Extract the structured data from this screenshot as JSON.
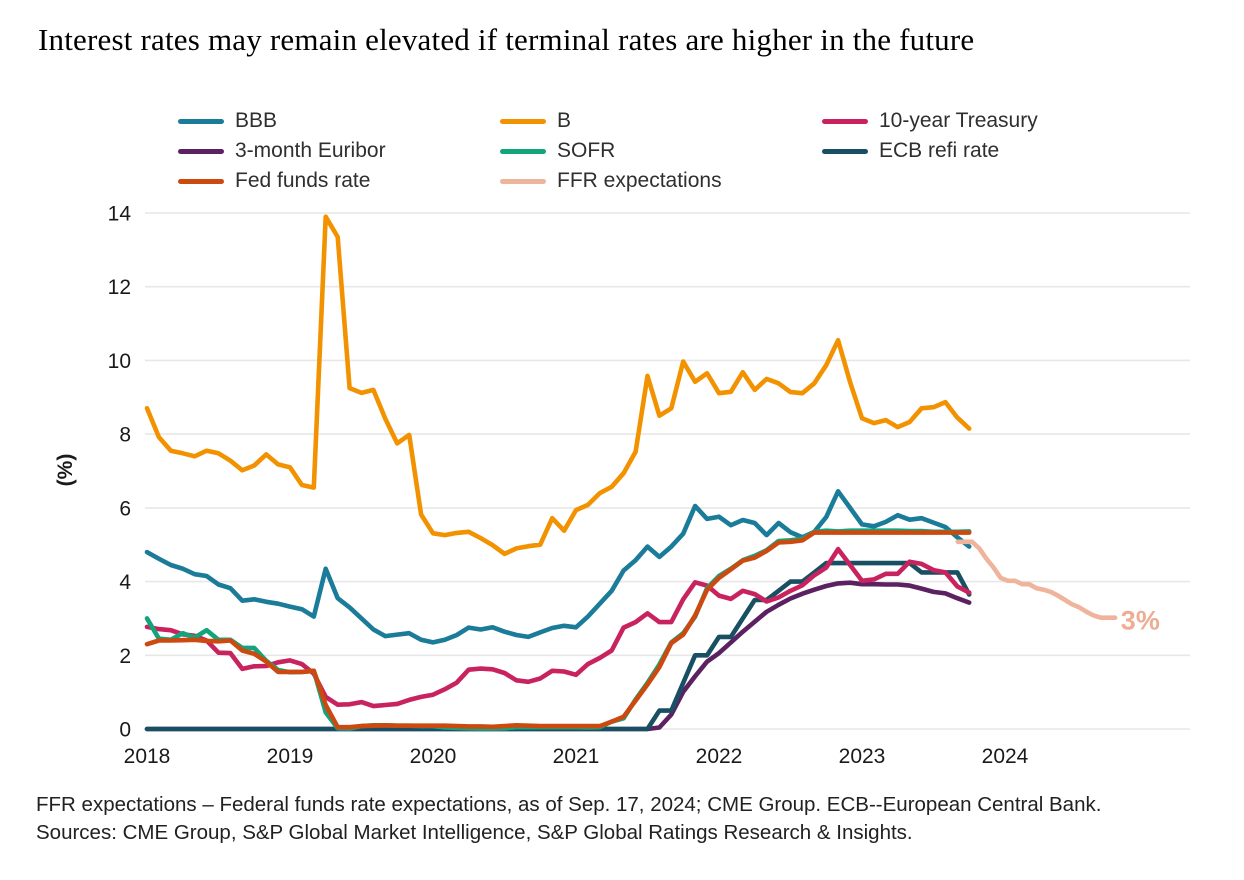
{
  "title": "Interest rates may remain elevated if terminal rates are higher in the future",
  "legend": {
    "items": [
      {
        "label": "BBB",
        "color": "#1b7c99"
      },
      {
        "label": "B",
        "color": "#f39200"
      },
      {
        "label": "10-year Treasury",
        "color": "#c9235f"
      },
      {
        "label": "3-month Euribor",
        "color": "#5c2161"
      },
      {
        "label": "SOFR",
        "color": "#14a47c"
      },
      {
        "label": "ECB refi rate",
        "color": "#194f63"
      },
      {
        "label": "Fed funds rate",
        "color": "#cc4a10"
      },
      {
        "label": "FFR expectations",
        "color": "#eeb49c"
      }
    ]
  },
  "footer": {
    "line1": "FFR expectations – Federal funds rate expectations, as of Sep. 17, 2024; CME Group. ECB--European Central Bank.",
    "line2": "Sources: CME Group, S&P Global Market Intelligence, S&P Global Ratings Research & Insights."
  },
  "chart_data": {
    "type": "line",
    "title": "Interest rates may remain elevated if terminal rates are higher in the future",
    "grid": "horizontal",
    "grid_color": "#e7e7e7",
    "legend_position": "top",
    "y_axis": {
      "label": "(%)",
      "ticks": [
        0,
        2,
        4,
        6,
        8,
        10,
        12,
        14
      ],
      "range": [
        0,
        14
      ]
    },
    "x_axis": {
      "ticks": [
        2018,
        2019,
        2020,
        2021,
        2022,
        2023,
        2024
      ],
      "range": [
        2018,
        2025.3
      ]
    },
    "annotation": {
      "text": "3%",
      "x": 2024.81,
      "y": 2.95,
      "color": "#edad92"
    },
    "series": [
      {
        "name": "3-month Euribor",
        "color": "#5c2161",
        "x_start": 2018.0,
        "x_step": 0.08333,
        "values": [
          0,
          0,
          0,
          0,
          0,
          0,
          0,
          0,
          0,
          0,
          0,
          0,
          0,
          0,
          0,
          0,
          0,
          0,
          0,
          0,
          0,
          0,
          0,
          0,
          0,
          0,
          0,
          0,
          0,
          0,
          0,
          0,
          0,
          0,
          0,
          0,
          0,
          0,
          0,
          0,
          0,
          0,
          0,
          0.04,
          0.39,
          1.01,
          1.43,
          1.83,
          2.06,
          2.35,
          2.64,
          2.91,
          3.18,
          3.37,
          3.54,
          3.67,
          3.78,
          3.88,
          3.95,
          3.97,
          3.93,
          3.93,
          3.92,
          3.92,
          3.89,
          3.81,
          3.72,
          3.68,
          3.55,
          3.43
        ]
      },
      {
        "name": "ECB refi rate",
        "color": "#194f63",
        "x_start": 2018.0,
        "x_step": 0.08333,
        "values": [
          0,
          0,
          0,
          0,
          0,
          0,
          0,
          0,
          0,
          0,
          0,
          0,
          0,
          0,
          0,
          0,
          0,
          0,
          0,
          0,
          0,
          0,
          0,
          0,
          0,
          0,
          0,
          0,
          0,
          0,
          0,
          0,
          0,
          0,
          0,
          0,
          0,
          0,
          0,
          0,
          0,
          0,
          0,
          0.5,
          0.5,
          1.25,
          2,
          2,
          2.5,
          2.5,
          3,
          3.5,
          3.5,
          3.75,
          4,
          4,
          4.25,
          4.5,
          4.5,
          4.5,
          4.5,
          4.5,
          4.5,
          4.5,
          4.5,
          4.25,
          4.25,
          4.25,
          4.25,
          3.65
        ]
      },
      {
        "name": "10-year Treasury",
        "color": "#c9235f",
        "x_start": 2018.0,
        "x_step": 0.08333,
        "values": [
          2.77,
          2.71,
          2.68,
          2.57,
          2.53,
          2.4,
          2.07,
          2.06,
          1.63,
          1.7,
          1.71,
          1.81,
          1.86,
          1.76,
          1.5,
          0.87,
          0.66,
          0.67,
          0.73,
          0.62,
          0.65,
          0.68,
          0.79,
          0.87,
          0.93,
          1.08,
          1.26,
          1.61,
          1.64,
          1.62,
          1.52,
          1.32,
          1.28,
          1.37,
          1.58,
          1.56,
          1.47,
          1.76,
          1.93,
          2.13,
          2.75,
          2.9,
          3.14,
          2.9,
          2.9,
          3.52,
          3.98,
          3.89,
          3.62,
          3.53,
          3.75,
          3.66,
          3.46,
          3.57,
          3.75,
          3.9,
          4.17,
          4.38,
          4.88,
          4.45,
          4.02,
          4.06,
          4.21,
          4.21,
          4.54,
          4.48,
          4.31,
          4.25,
          3.87,
          3.7
        ]
      },
      {
        "name": "BBB",
        "color": "#1b7c99",
        "x_start": 2018.0,
        "x_step": 0.08333,
        "values": [
          4.8,
          4.62,
          4.45,
          4.35,
          4.2,
          4.15,
          3.92,
          3.82,
          3.48,
          3.52,
          3.45,
          3.4,
          3.32,
          3.25,
          3.05,
          4.35,
          3.55,
          3.3,
          3.0,
          2.7,
          2.52,
          2.56,
          2.6,
          2.42,
          2.35,
          2.42,
          2.55,
          2.75,
          2.7,
          2.76,
          2.64,
          2.55,
          2.5,
          2.62,
          2.74,
          2.8,
          2.76,
          3.05,
          3.4,
          3.75,
          4.3,
          4.58,
          4.95,
          4.67,
          4.95,
          5.3,
          6.05,
          5.7,
          5.76,
          5.53,
          5.67,
          5.59,
          5.26,
          5.59,
          5.34,
          5.2,
          5.35,
          5.75,
          6.45,
          6.0,
          5.55,
          5.5,
          5.62,
          5.8,
          5.68,
          5.72,
          5.6,
          5.48,
          5.2,
          4.95
        ]
      },
      {
        "name": "SOFR",
        "color": "#14a47c",
        "x_start": 2018.0,
        "x_step": 0.08333,
        "values": [
          3.0,
          2.45,
          2.42,
          2.6,
          2.48,
          2.68,
          2.42,
          2.42,
          2.2,
          2.2,
          1.85,
          1.6,
          1.54,
          1.55,
          1.58,
          0.45,
          0.02,
          0.01,
          0.08,
          0.1,
          0.1,
          0.09,
          0.09,
          0.08,
          0.08,
          0.04,
          0.03,
          0.02,
          0.01,
          0.01,
          0.02,
          0.05,
          0.05,
          0.05,
          0.05,
          0.05,
          0.05,
          0.04,
          0.05,
          0.2,
          0.29,
          0.8,
          1.25,
          1.75,
          2.35,
          2.6,
          3.05,
          3.82,
          4.15,
          4.35,
          4.58,
          4.7,
          4.85,
          5.1,
          5.12,
          5.16,
          5.35,
          5.38,
          5.36,
          5.38,
          5.38,
          5.38,
          5.38,
          5.38,
          5.37,
          5.37,
          5.35,
          5.35,
          5.35,
          5.36
        ]
      },
      {
        "name": "Fed funds rate",
        "color": "#cc4a10",
        "x_start": 2018.0,
        "x_step": 0.08333,
        "values": [
          2.3,
          2.4,
          2.4,
          2.41,
          2.42,
          2.39,
          2.38,
          2.4,
          2.13,
          2.04,
          1.83,
          1.55,
          1.55,
          1.55,
          1.58,
          0.65,
          0.05,
          0.05,
          0.08,
          0.09,
          0.1,
          0.09,
          0.09,
          0.09,
          0.09,
          0.09,
          0.08,
          0.07,
          0.07,
          0.06,
          0.08,
          0.1,
          0.09,
          0.08,
          0.08,
          0.08,
          0.08,
          0.08,
          0.08,
          0.2,
          0.33,
          0.77,
          1.21,
          1.68,
          2.33,
          2.56,
          3.08,
          3.78,
          4.1,
          4.33,
          4.57,
          4.65,
          4.83,
          5.06,
          5.08,
          5.12,
          5.33,
          5.33,
          5.33,
          5.33,
          5.33,
          5.33,
          5.33,
          5.33,
          5.33,
          5.33,
          5.33,
          5.33,
          5.33,
          5.33
        ]
      },
      {
        "name": "B",
        "color": "#f39200",
        "x_start": 2018.0,
        "x_step": 0.08333,
        "values": [
          8.7,
          7.92,
          7.55,
          7.48,
          7.4,
          7.55,
          7.48,
          7.28,
          7.02,
          7.15,
          7.45,
          7.18,
          7.1,
          6.62,
          6.55,
          13.9,
          13.35,
          9.25,
          9.12,
          9.2,
          8.42,
          7.75,
          7.98,
          5.82,
          5.31,
          5.26,
          5.32,
          5.35,
          5.18,
          4.99,
          4.75,
          4.9,
          4.96,
          5.0,
          5.72,
          5.38,
          5.94,
          6.08,
          6.4,
          6.57,
          6.94,
          7.52,
          9.58,
          8.5,
          8.7,
          9.97,
          9.42,
          9.65,
          9.11,
          9.15,
          9.68,
          9.2,
          9.5,
          9.38,
          9.14,
          9.11,
          9.38,
          9.87,
          10.55,
          9.41,
          8.43,
          8.3,
          8.38,
          8.19,
          8.33,
          8.7,
          8.73,
          8.87,
          8.45,
          8.15
        ]
      },
      {
        "name": "FFR expectations",
        "color": "#eeb49c",
        "points": [
          [
            2023.67,
            5.08
          ],
          [
            2023.77,
            5.08
          ],
          [
            2023.82,
            4.9
          ],
          [
            2023.87,
            4.62
          ],
          [
            2023.92,
            4.38
          ],
          [
            2023.97,
            4.1
          ],
          [
            2024.02,
            4.02
          ],
          [
            2024.07,
            4.02
          ],
          [
            2024.12,
            3.93
          ],
          [
            2024.17,
            3.93
          ],
          [
            2024.22,
            3.82
          ],
          [
            2024.27,
            3.78
          ],
          [
            2024.32,
            3.72
          ],
          [
            2024.37,
            3.62
          ],
          [
            2024.42,
            3.5
          ],
          [
            2024.47,
            3.38
          ],
          [
            2024.52,
            3.3
          ],
          [
            2024.57,
            3.18
          ],
          [
            2024.62,
            3.08
          ],
          [
            2024.67,
            3.02
          ],
          [
            2024.72,
            3.02
          ],
          [
            2024.77,
            3.02
          ]
        ]
      }
    ]
  }
}
